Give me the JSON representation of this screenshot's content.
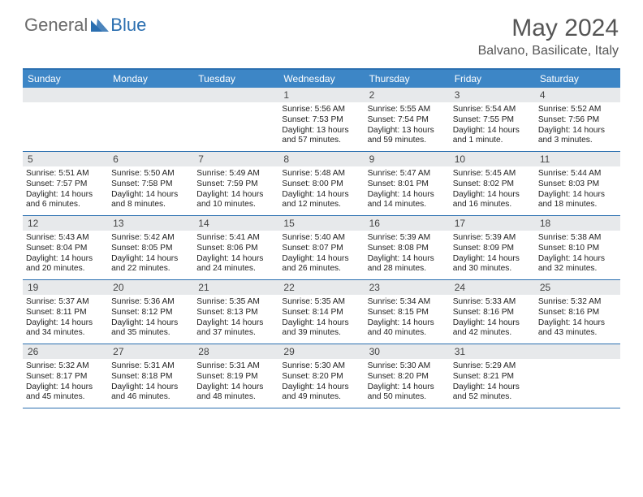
{
  "logo": {
    "general": "General",
    "blue": "Blue"
  },
  "title": {
    "month": "May 2024",
    "location": "Balvano, Basilicate, Italy"
  },
  "dayNames": [
    "Sunday",
    "Monday",
    "Tuesday",
    "Wednesday",
    "Thursday",
    "Friday",
    "Saturday"
  ],
  "colors": {
    "headerBg": "#3d86c6",
    "accent": "#2b6fb0",
    "dateBg": "#e7e9eb",
    "text": "#222222",
    "titleText": "#555555"
  },
  "weeks": [
    [
      null,
      null,
      null,
      {
        "d": "1",
        "sr": "Sunrise: 5:56 AM",
        "ss": "Sunset: 7:53 PM",
        "dl": "Daylight: 13 hours and 57 minutes."
      },
      {
        "d": "2",
        "sr": "Sunrise: 5:55 AM",
        "ss": "Sunset: 7:54 PM",
        "dl": "Daylight: 13 hours and 59 minutes."
      },
      {
        "d": "3",
        "sr": "Sunrise: 5:54 AM",
        "ss": "Sunset: 7:55 PM",
        "dl": "Daylight: 14 hours and 1 minute."
      },
      {
        "d": "4",
        "sr": "Sunrise: 5:52 AM",
        "ss": "Sunset: 7:56 PM",
        "dl": "Daylight: 14 hours and 3 minutes."
      }
    ],
    [
      {
        "d": "5",
        "sr": "Sunrise: 5:51 AM",
        "ss": "Sunset: 7:57 PM",
        "dl": "Daylight: 14 hours and 6 minutes."
      },
      {
        "d": "6",
        "sr": "Sunrise: 5:50 AM",
        "ss": "Sunset: 7:58 PM",
        "dl": "Daylight: 14 hours and 8 minutes."
      },
      {
        "d": "7",
        "sr": "Sunrise: 5:49 AM",
        "ss": "Sunset: 7:59 PM",
        "dl": "Daylight: 14 hours and 10 minutes."
      },
      {
        "d": "8",
        "sr": "Sunrise: 5:48 AM",
        "ss": "Sunset: 8:00 PM",
        "dl": "Daylight: 14 hours and 12 minutes."
      },
      {
        "d": "9",
        "sr": "Sunrise: 5:47 AM",
        "ss": "Sunset: 8:01 PM",
        "dl": "Daylight: 14 hours and 14 minutes."
      },
      {
        "d": "10",
        "sr": "Sunrise: 5:45 AM",
        "ss": "Sunset: 8:02 PM",
        "dl": "Daylight: 14 hours and 16 minutes."
      },
      {
        "d": "11",
        "sr": "Sunrise: 5:44 AM",
        "ss": "Sunset: 8:03 PM",
        "dl": "Daylight: 14 hours and 18 minutes."
      }
    ],
    [
      {
        "d": "12",
        "sr": "Sunrise: 5:43 AM",
        "ss": "Sunset: 8:04 PM",
        "dl": "Daylight: 14 hours and 20 minutes."
      },
      {
        "d": "13",
        "sr": "Sunrise: 5:42 AM",
        "ss": "Sunset: 8:05 PM",
        "dl": "Daylight: 14 hours and 22 minutes."
      },
      {
        "d": "14",
        "sr": "Sunrise: 5:41 AM",
        "ss": "Sunset: 8:06 PM",
        "dl": "Daylight: 14 hours and 24 minutes."
      },
      {
        "d": "15",
        "sr": "Sunrise: 5:40 AM",
        "ss": "Sunset: 8:07 PM",
        "dl": "Daylight: 14 hours and 26 minutes."
      },
      {
        "d": "16",
        "sr": "Sunrise: 5:39 AM",
        "ss": "Sunset: 8:08 PM",
        "dl": "Daylight: 14 hours and 28 minutes."
      },
      {
        "d": "17",
        "sr": "Sunrise: 5:39 AM",
        "ss": "Sunset: 8:09 PM",
        "dl": "Daylight: 14 hours and 30 minutes."
      },
      {
        "d": "18",
        "sr": "Sunrise: 5:38 AM",
        "ss": "Sunset: 8:10 PM",
        "dl": "Daylight: 14 hours and 32 minutes."
      }
    ],
    [
      {
        "d": "19",
        "sr": "Sunrise: 5:37 AM",
        "ss": "Sunset: 8:11 PM",
        "dl": "Daylight: 14 hours and 34 minutes."
      },
      {
        "d": "20",
        "sr": "Sunrise: 5:36 AM",
        "ss": "Sunset: 8:12 PM",
        "dl": "Daylight: 14 hours and 35 minutes."
      },
      {
        "d": "21",
        "sr": "Sunrise: 5:35 AM",
        "ss": "Sunset: 8:13 PM",
        "dl": "Daylight: 14 hours and 37 minutes."
      },
      {
        "d": "22",
        "sr": "Sunrise: 5:35 AM",
        "ss": "Sunset: 8:14 PM",
        "dl": "Daylight: 14 hours and 39 minutes."
      },
      {
        "d": "23",
        "sr": "Sunrise: 5:34 AM",
        "ss": "Sunset: 8:15 PM",
        "dl": "Daylight: 14 hours and 40 minutes."
      },
      {
        "d": "24",
        "sr": "Sunrise: 5:33 AM",
        "ss": "Sunset: 8:16 PM",
        "dl": "Daylight: 14 hours and 42 minutes."
      },
      {
        "d": "25",
        "sr": "Sunrise: 5:32 AM",
        "ss": "Sunset: 8:16 PM",
        "dl": "Daylight: 14 hours and 43 minutes."
      }
    ],
    [
      {
        "d": "26",
        "sr": "Sunrise: 5:32 AM",
        "ss": "Sunset: 8:17 PM",
        "dl": "Daylight: 14 hours and 45 minutes."
      },
      {
        "d": "27",
        "sr": "Sunrise: 5:31 AM",
        "ss": "Sunset: 8:18 PM",
        "dl": "Daylight: 14 hours and 46 minutes."
      },
      {
        "d": "28",
        "sr": "Sunrise: 5:31 AM",
        "ss": "Sunset: 8:19 PM",
        "dl": "Daylight: 14 hours and 48 minutes."
      },
      {
        "d": "29",
        "sr": "Sunrise: 5:30 AM",
        "ss": "Sunset: 8:20 PM",
        "dl": "Daylight: 14 hours and 49 minutes."
      },
      {
        "d": "30",
        "sr": "Sunrise: 5:30 AM",
        "ss": "Sunset: 8:20 PM",
        "dl": "Daylight: 14 hours and 50 minutes."
      },
      {
        "d": "31",
        "sr": "Sunrise: 5:29 AM",
        "ss": "Sunset: 8:21 PM",
        "dl": "Daylight: 14 hours and 52 minutes."
      },
      null
    ]
  ]
}
